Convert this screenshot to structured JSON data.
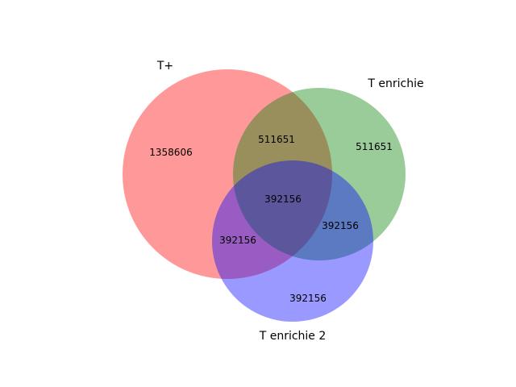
{
  "sets": [
    {
      "name": "T+",
      "color": "#ff0000"
    },
    {
      "name": "T enrichie",
      "color": "#008000"
    },
    {
      "name": "T enrichie 2",
      "color": "#0000ff"
    }
  ],
  "regions": {
    "only_a": "1358606",
    "only_b": "511651",
    "only_c": "392156",
    "a_b": "511651",
    "a_c": "392156",
    "b_c": "392156",
    "a_b_c": "392156"
  }
}
